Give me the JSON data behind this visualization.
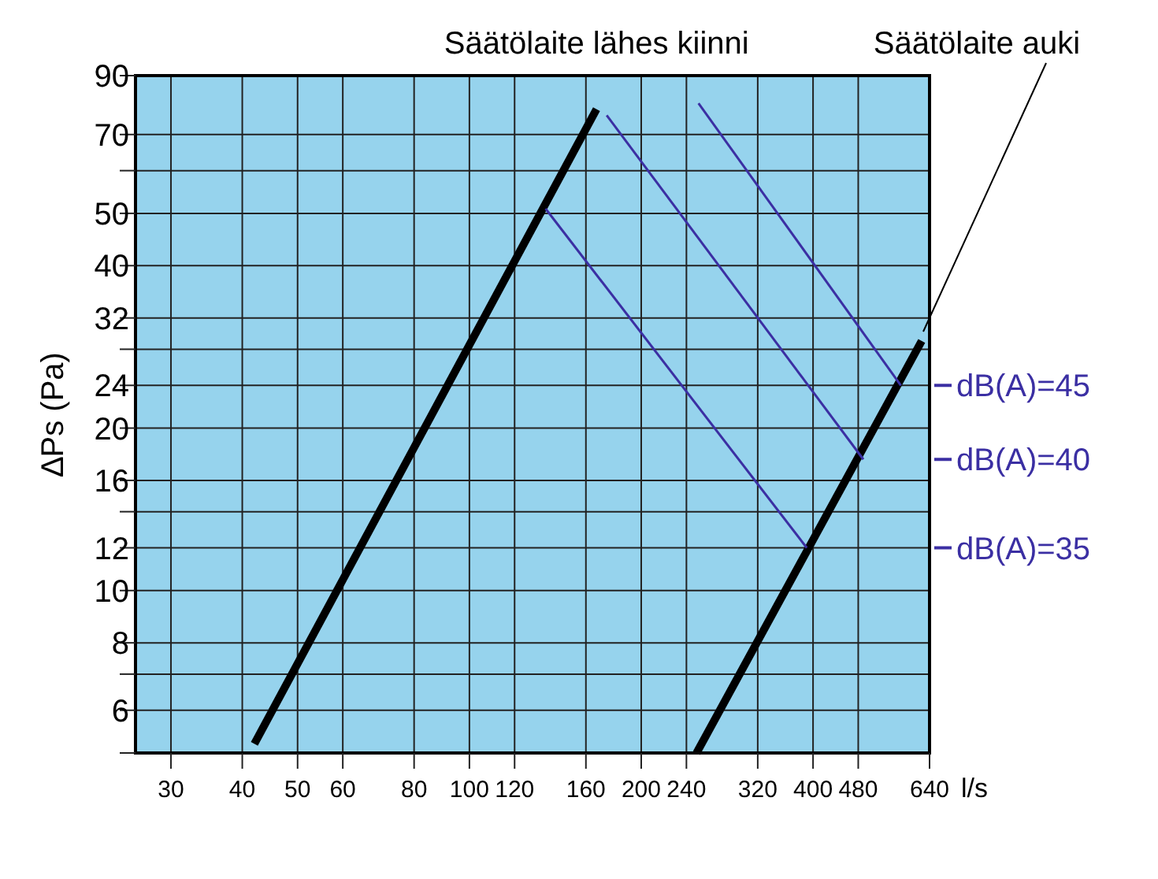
{
  "chart_data": {
    "type": "line",
    "xlabel": "l/s",
    "ylabel": "∆Ps (Pa)",
    "log": "xy",
    "grid": true,
    "legend": "right",
    "xlim": [
      26,
      640
    ],
    "ylim": [
      5,
      90
    ],
    "xticks": [
      30,
      40,
      50,
      60,
      80,
      100,
      120,
      160,
      200,
      240,
      320,
      400,
      480,
      640
    ],
    "yticks": [
      {
        "value": 5,
        "label": null
      },
      6,
      {
        "value": 7,
        "label": null
      },
      8,
      10,
      12,
      {
        "value": 14,
        "label": null
      },
      16,
      20,
      24,
      {
        "value": 28,
        "label": null
      },
      32,
      40,
      50,
      {
        "value": 60,
        "label": null
      },
      70,
      90
    ],
    "series": [
      {
        "name": "Säätölaite lähes kiinni",
        "color": "#000000",
        "x": [
          42,
          167
        ],
        "values": [
          5.2,
          78
        ]
      },
      {
        "name": "Säätölaite auki",
        "color": "#000000",
        "x": [
          250,
          620
        ],
        "values": [
          5,
          29
        ]
      },
      {
        "name": "dB(A)=35",
        "color": "#3b2fa3",
        "x": [
          136,
          390
        ],
        "values": [
          51,
          12
        ]
      },
      {
        "name": "dB(A)=40",
        "color": "#3b2fa3",
        "x": [
          174,
          490
        ],
        "values": [
          76,
          17.5
        ]
      },
      {
        "name": "dB(A)=45",
        "color": "#3b2fa3",
        "x": [
          252,
          570
        ],
        "values": [
          80,
          24
        ]
      }
    ]
  }
}
